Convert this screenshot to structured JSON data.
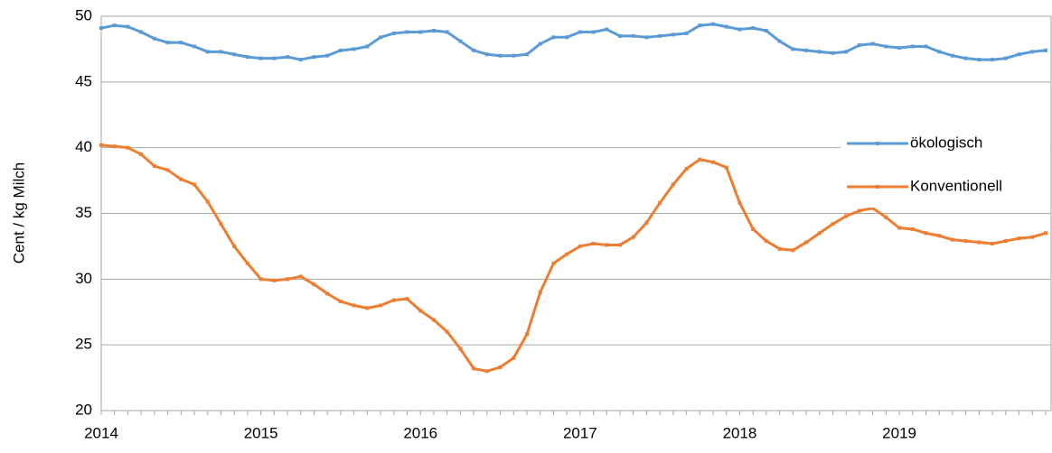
{
  "chart_data": {
    "type": "line",
    "ylabel": "Cent / kg Milch",
    "categories": [
      "2014",
      null,
      null,
      null,
      null,
      null,
      null,
      null,
      null,
      null,
      null,
      null,
      "2015",
      null,
      null,
      null,
      null,
      null,
      null,
      null,
      null,
      null,
      null,
      null,
      "2016",
      null,
      null,
      null,
      null,
      null,
      null,
      null,
      null,
      null,
      null,
      null,
      "2017",
      null,
      null,
      null,
      null,
      null,
      null,
      null,
      null,
      null,
      null,
      null,
      "2018",
      null,
      null,
      null,
      null,
      null,
      null,
      null,
      null,
      null,
      null,
      null,
      "2019",
      null,
      null,
      null,
      null,
      null,
      null,
      null,
      null,
      null,
      null,
      null
    ],
    "series": [
      {
        "name": "ökologisch",
        "color": "#5b9bd5",
        "values": [
          49.1,
          49.3,
          49.2,
          48.8,
          48.3,
          48.0,
          48.0,
          47.7,
          47.3,
          47.3,
          47.1,
          46.9,
          46.8,
          46.8,
          46.9,
          46.7,
          46.9,
          47.0,
          47.4,
          47.5,
          47.7,
          48.4,
          48.7,
          48.8,
          48.8,
          48.9,
          48.8,
          48.1,
          47.4,
          47.1,
          47.0,
          47.0,
          47.1,
          47.9,
          48.4,
          48.4,
          48.8,
          48.8,
          49.0,
          48.5,
          48.5,
          48.4,
          48.5,
          48.6,
          48.7,
          49.3,
          49.4,
          49.2,
          49.0,
          49.1,
          48.9,
          48.1,
          47.5,
          47.4,
          47.3,
          47.2,
          47.3,
          47.8,
          47.9,
          47.7,
          47.6,
          47.7,
          47.7,
          47.3,
          47.0,
          46.8,
          46.7,
          46.7,
          46.8,
          47.1,
          47.3,
          47.4
        ]
      },
      {
        "name": "Konventionell",
        "color": "#ed7d31",
        "values": [
          40.2,
          40.1,
          40.0,
          39.5,
          38.6,
          38.3,
          37.6,
          37.2,
          35.9,
          34.2,
          32.5,
          31.2,
          30.0,
          29.9,
          30.0,
          30.2,
          29.6,
          28.9,
          28.3,
          28.0,
          27.8,
          28.0,
          28.4,
          28.5,
          27.6,
          26.9,
          26.0,
          24.7,
          23.2,
          23.0,
          23.3,
          24.0,
          25.8,
          29.0,
          31.2,
          31.9,
          32.5,
          32.7,
          32.6,
          32.6,
          33.2,
          34.3,
          35.8,
          37.2,
          38.4,
          39.1,
          38.9,
          38.5,
          35.8,
          33.8,
          32.9,
          32.3,
          32.2,
          32.8,
          33.5,
          34.2,
          34.8,
          35.2,
          35.4,
          34.7,
          33.9,
          33.8,
          33.5,
          33.3,
          33.0,
          32.9,
          32.8,
          32.7,
          32.9,
          33.1,
          33.2,
          33.5
        ]
      }
    ],
    "ylim": [
      20,
      50
    ],
    "yticks": [
      20,
      25,
      30,
      35,
      40,
      45,
      50
    ],
    "grid": true,
    "legend": "right"
  }
}
